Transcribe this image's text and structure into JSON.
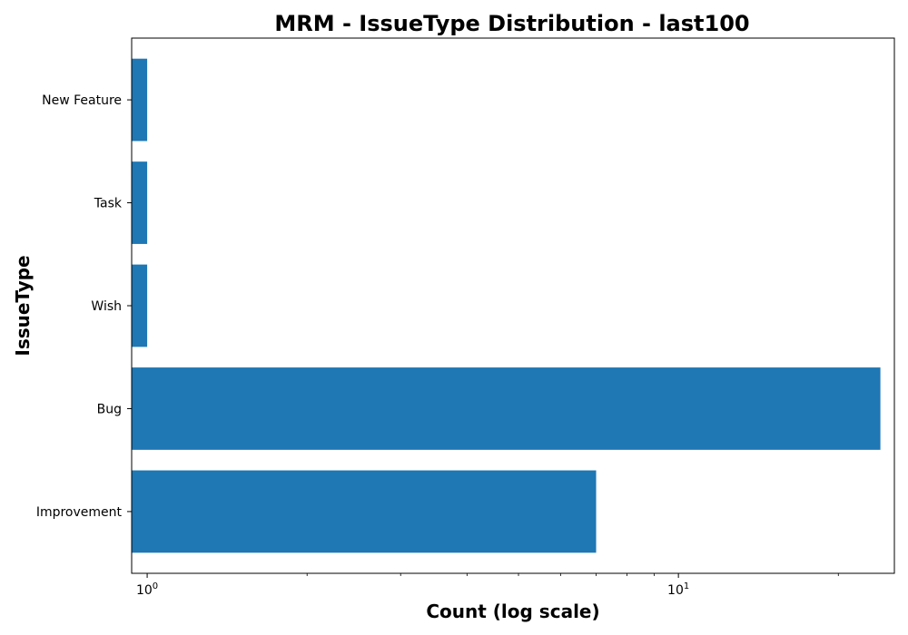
{
  "chart_data": {
    "type": "bar",
    "orientation": "horizontal",
    "title": "MRM - IssueType Distribution - last100",
    "xlabel": "Count (log scale)",
    "ylabel": "IssueType",
    "xscale": "log",
    "xlim": [
      0.935,
      25.5
    ],
    "grid": false,
    "categories": [
      "Improvement",
      "Bug",
      "Wish",
      "Task",
      "New Feature"
    ],
    "values": [
      7,
      24,
      1,
      1,
      1
    ],
    "bar_color": "#1f77b4",
    "x_ticks": [
      {
        "base": "10",
        "exp": "0",
        "value": 1
      },
      {
        "base": "10",
        "exp": "1",
        "value": 10
      }
    ]
  }
}
